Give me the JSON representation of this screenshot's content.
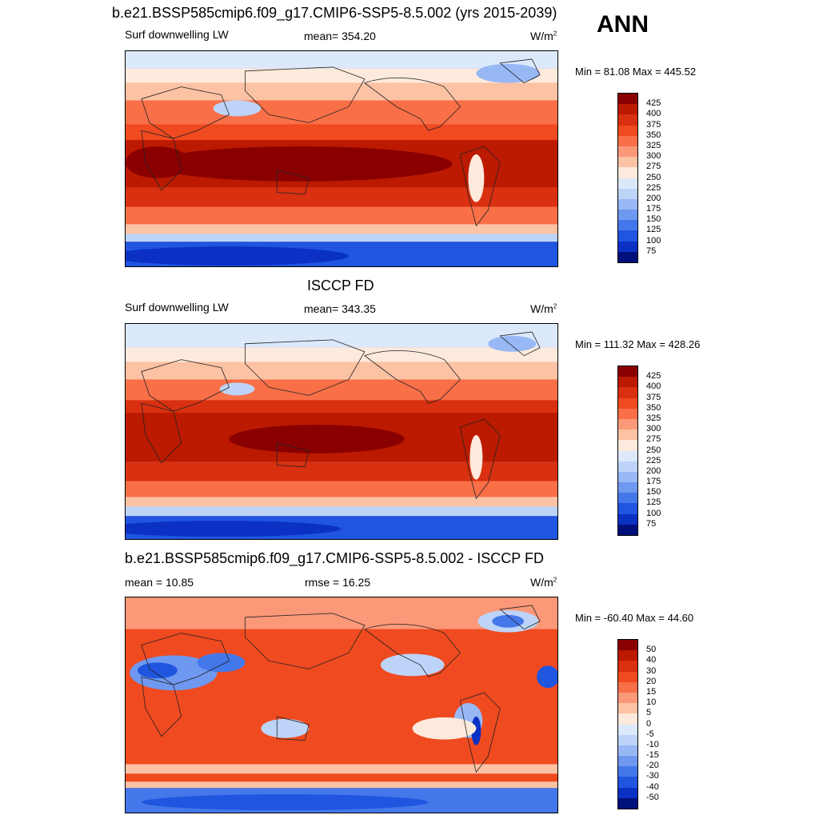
{
  "season": "ANN",
  "units_base": "W/m",
  "units_exp": "2",
  "panels": [
    {
      "title": "b.e21.BSSP585cmip6.f09_g17.CMIP6-SSP5-8.5.002 (yrs 2015-2039)",
      "left_label": "Surf downwelling LW",
      "center_label": "mean= 354.20",
      "minmax": "Min =  81.08 Max = 445.52",
      "colorbar_ticks": [
        "425",
        "400",
        "375",
        "350",
        "325",
        "300",
        "275",
        "250",
        "225",
        "200",
        "175",
        "150",
        "125",
        "100",
        "75"
      ],
      "colors": [
        "#8a0000",
        "#bb1a00",
        "#d83010",
        "#f04a20",
        "#f86f48",
        "#fb9878",
        "#fcc2a4",
        "#feeadc",
        "#dbe9fb",
        "#bdd4f8",
        "#98b8f5",
        "#6f98f0",
        "#4478ea",
        "#1f55df",
        "#0b30c4",
        "#00107a"
      ]
    },
    {
      "title": "ISCCP FD",
      "left_label": "Surf downwelling LW",
      "center_label": "mean= 343.35",
      "minmax": "Min = 111.32 Max = 428.26",
      "colorbar_ticks": [
        "425",
        "400",
        "375",
        "350",
        "325",
        "300",
        "275",
        "250",
        "225",
        "200",
        "175",
        "150",
        "125",
        "100",
        "75"
      ],
      "colors": [
        "#8a0000",
        "#bb1a00",
        "#d83010",
        "#f04a20",
        "#f86f48",
        "#fb9878",
        "#fcc2a4",
        "#feeadc",
        "#dbe9fb",
        "#bdd4f8",
        "#98b8f5",
        "#6f98f0",
        "#4478ea",
        "#1f55df",
        "#0b30c4",
        "#00107a"
      ]
    },
    {
      "title": "b.e21.BSSP585cmip6.f09_g17.CMIP6-SSP5-8.5.002 - ISCCP FD",
      "left_label": "mean =  10.85",
      "center_label": "rmse =  16.25",
      "minmax": "Min = -60.40 Max =  44.60",
      "colorbar_ticks": [
        "50",
        "40",
        "30",
        "20",
        "15",
        "10",
        "5",
        "0",
        "-5",
        "-10",
        "-15",
        "-20",
        "-30",
        "-40",
        "-50"
      ],
      "colors": [
        "#8a0000",
        "#bb1a00",
        "#d83010",
        "#f04a20",
        "#f86f48",
        "#fb9878",
        "#fcc2a4",
        "#feeadc",
        "#dbe9fb",
        "#bdd4f8",
        "#98b8f5",
        "#6f98f0",
        "#4478ea",
        "#1f55df",
        "#0b30c4",
        "#00107a"
      ]
    }
  ],
  "chart_data": [
    {
      "type": "heatmap",
      "title": "b.e21.BSSP585cmip6.f09_g17.CMIP6-SSP5-8.5.002 (yrs 2015-2039)",
      "variable": "Surf downwelling LW",
      "units": "W/m2",
      "mean": 354.2,
      "min": 81.08,
      "max": 445.52,
      "contour_levels": [
        75,
        100,
        125,
        150,
        175,
        200,
        225,
        250,
        275,
        300,
        325,
        350,
        375,
        400,
        425
      ]
    },
    {
      "type": "heatmap",
      "title": "ISCCP FD",
      "variable": "Surf downwelling LW",
      "units": "W/m2",
      "mean": 343.35,
      "min": 111.32,
      "max": 428.26,
      "contour_levels": [
        75,
        100,
        125,
        150,
        175,
        200,
        225,
        250,
        275,
        300,
        325,
        350,
        375,
        400,
        425
      ]
    },
    {
      "type": "heatmap",
      "title": "b.e21.BSSP585cmip6.f09_g17.CMIP6-SSP5-8.5.002 - ISCCP FD",
      "units": "W/m2",
      "mean": 10.85,
      "rmse": 16.25,
      "min": -60.4,
      "max": 44.6,
      "contour_levels": [
        -50,
        -40,
        -30,
        -20,
        -15,
        -10,
        -5,
        0,
        5,
        10,
        15,
        20,
        30,
        40,
        50
      ]
    }
  ]
}
